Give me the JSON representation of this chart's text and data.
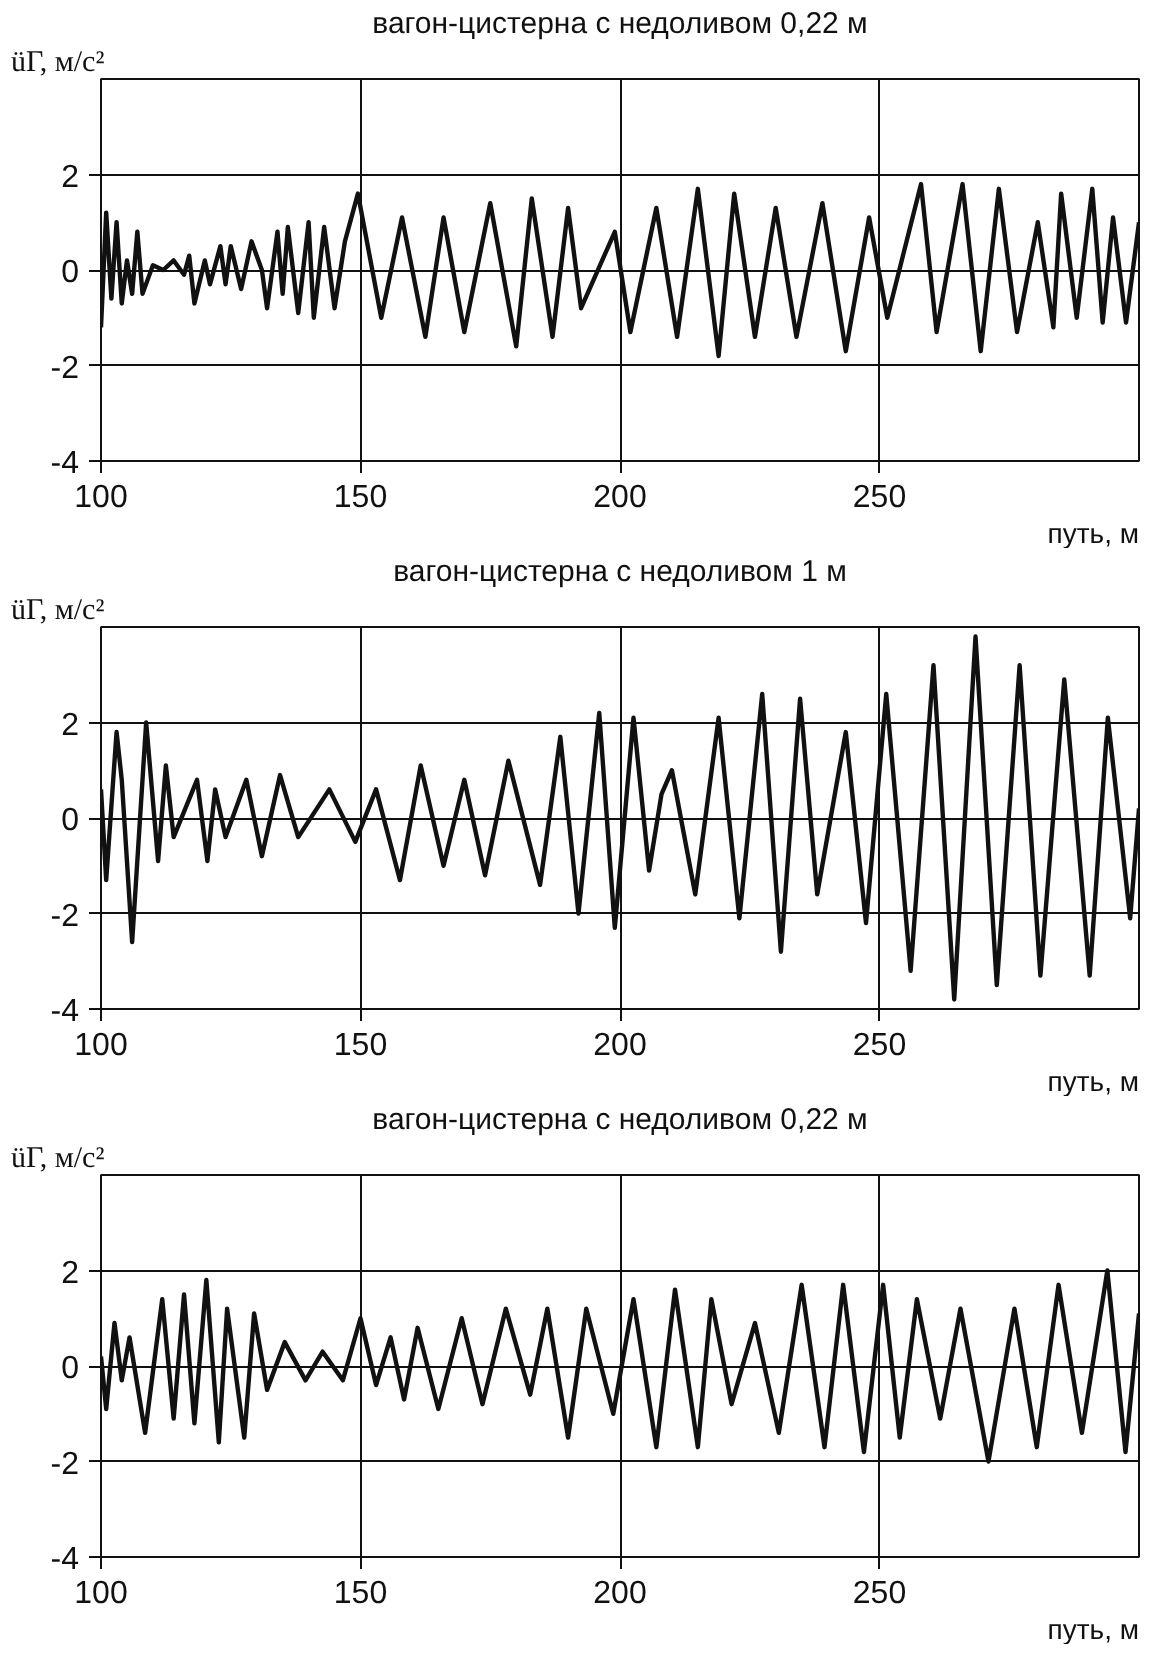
{
  "chart_data": [
    {
      "type": "line",
      "title": "вагон-цистерна с недоливом 0,22 м",
      "ylabel": "üΓ, м/с²",
      "xlabel": "путь, м",
      "xlim": [
        100,
        300
      ],
      "ylim": [
        -4,
        4
      ],
      "xticks": [
        100,
        150,
        200,
        250
      ],
      "yticks": [
        -4,
        -2,
        0,
        2
      ],
      "grid": true,
      "marker": "none",
      "line_style": "solid",
      "series": [
        {
          "color": "#111111",
          "x": [
            100,
            101,
            102,
            103,
            104,
            105,
            106,
            107,
            108,
            110,
            112,
            114,
            116,
            117,
            118,
            120,
            121,
            123,
            124,
            125,
            127,
            129,
            131,
            132,
            134,
            135,
            136,
            138,
            140,
            141,
            143,
            145,
            147,
            149.5,
            154,
            158,
            162.5,
            166,
            170,
            175,
            180,
            183,
            187,
            190,
            192.5,
            199,
            202,
            207,
            211,
            215,
            219,
            222,
            226,
            230,
            234,
            239,
            243.5,
            248,
            251.5,
            258,
            261,
            266,
            269.5,
            273,
            276.5,
            280.5,
            283.5,
            285,
            288,
            291,
            293,
            295,
            297.5,
            300
          ],
          "values": [
            -1.2,
            1.2,
            -0.6,
            1.0,
            -0.7,
            0.2,
            -0.5,
            0.8,
            -0.5,
            0.1,
            0.0,
            0.2,
            -0.1,
            0.3,
            -0.7,
            0.2,
            -0.3,
            0.5,
            -0.3,
            0.5,
            -0.4,
            0.6,
            0.0,
            -0.8,
            0.8,
            -0.5,
            0.9,
            -0.9,
            1.0,
            -1.0,
            0.9,
            -0.8,
            0.6,
            1.6,
            -1.0,
            1.1,
            -1.4,
            1.1,
            -1.3,
            1.4,
            -1.6,
            1.5,
            -1.4,
            1.3,
            -0.8,
            0.8,
            -1.3,
            1.3,
            -1.4,
            1.7,
            -1.8,
            1.6,
            -1.4,
            1.3,
            -1.4,
            1.4,
            -1.7,
            1.1,
            -1.0,
            1.8,
            -1.3,
            1.8,
            -1.7,
            1.7,
            -1.3,
            1.0,
            -1.2,
            1.6,
            -1.0,
            1.7,
            -1.1,
            1.1,
            -1.1,
            1.0
          ]
        }
      ]
    },
    {
      "type": "line",
      "title": "вагон-цистерна с недоливом 1 м",
      "ylabel": "üΓ, м/с²",
      "xlabel": "путь, м",
      "xlim": [
        100,
        300
      ],
      "ylim": [
        -4,
        4
      ],
      "xticks": [
        100,
        150,
        200,
        250
      ],
      "yticks": [
        -4,
        -2,
        0,
        2
      ],
      "grid": true,
      "marker": "none",
      "line_style": "solid",
      "series": [
        {
          "color": "#111111",
          "x": [
            100,
            101,
            103,
            104,
            106,
            108.7,
            111,
            112.5,
            114,
            118.5,
            120.5,
            122,
            124,
            128,
            131,
            134.5,
            138,
            144,
            149,
            153,
            157.6,
            161.6,
            166,
            170,
            174,
            178.5,
            184.6,
            188.5,
            192,
            196,
            199,
            202.6,
            205.6,
            208,
            210,
            214.5,
            219,
            223,
            227.4,
            231,
            234.7,
            238,
            243.5,
            247.4,
            251.3,
            256,
            260.4,
            264.4,
            268.5,
            272.6,
            277,
            281,
            285.6,
            290.5,
            294,
            298.3,
            300
          ],
          "values": [
            0.6,
            -1.3,
            1.8,
            0.8,
            -2.6,
            2.0,
            -0.9,
            1.1,
            -0.4,
            0.8,
            -0.9,
            0.6,
            -0.4,
            0.8,
            -0.8,
            0.9,
            -0.4,
            0.6,
            -0.5,
            0.6,
            -1.3,
            1.1,
            -1.0,
            0.8,
            -1.2,
            1.2,
            -1.4,
            1.7,
            -2.0,
            2.2,
            -2.3,
            2.1,
            -1.1,
            0.5,
            1.0,
            -1.6,
            2.1,
            -2.1,
            2.6,
            -2.8,
            2.5,
            -1.6,
            1.8,
            -2.2,
            2.6,
            -3.2,
            3.2,
            -3.8,
            3.8,
            -3.5,
            3.2,
            -3.3,
            2.9,
            -3.3,
            2.1,
            -2.1,
            0.2
          ]
        }
      ]
    },
    {
      "type": "line",
      "title": "вагон-цистерна с недоливом 0,22 м",
      "ylabel": "üΓ, м/с²",
      "xlabel": "путь, м",
      "xlim": [
        100,
        300
      ],
      "ylim": [
        -4,
        4
      ],
      "xticks": [
        100,
        150,
        200,
        250
      ],
      "yticks": [
        -4,
        -2,
        0,
        2
      ],
      "grid": true,
      "marker": "none",
      "line_style": "solid",
      "series": [
        {
          "color": "#111111",
          "x": [
            100,
            101,
            102.6,
            104,
            105.5,
            108.5,
            111.8,
            114,
            116,
            118,
            120.3,
            122.7,
            124.3,
            127.6,
            129.5,
            132,
            135.4,
            139.4,
            142.7,
            146.6,
            150,
            153,
            155.8,
            158.4,
            161,
            165,
            169.5,
            173.5,
            178,
            182.7,
            186,
            190,
            193.5,
            198.7,
            202.6,
            207,
            210.6,
            215,
            217.6,
            221.5,
            226,
            230.6,
            235,
            239.4,
            243,
            247,
            250.7,
            253.9,
            257.2,
            261.7,
            265.6,
            271,
            276,
            280.3,
            284.5,
            289,
            293.9,
            297.4,
            300
          ],
          "values": [
            0.2,
            -0.9,
            0.9,
            -0.3,
            0.6,
            -1.4,
            1.4,
            -1.1,
            1.5,
            -1.2,
            1.8,
            -1.6,
            1.2,
            -1.5,
            1.1,
            -0.5,
            0.5,
            -0.3,
            0.3,
            -0.3,
            1.0,
            -0.4,
            0.6,
            -0.7,
            0.8,
            -0.9,
            1.0,
            -0.8,
            1.2,
            -0.6,
            1.2,
            -1.5,
            1.2,
            -1.0,
            1.4,
            -1.7,
            1.6,
            -1.7,
            1.4,
            -0.8,
            0.9,
            -1.4,
            1.7,
            -1.7,
            1.7,
            -1.8,
            1.7,
            -1.5,
            1.4,
            -1.1,
            1.2,
            -2.0,
            1.2,
            -1.7,
            1.7,
            -1.4,
            2.0,
            -1.8,
            1.1
          ]
        }
      ]
    }
  ]
}
